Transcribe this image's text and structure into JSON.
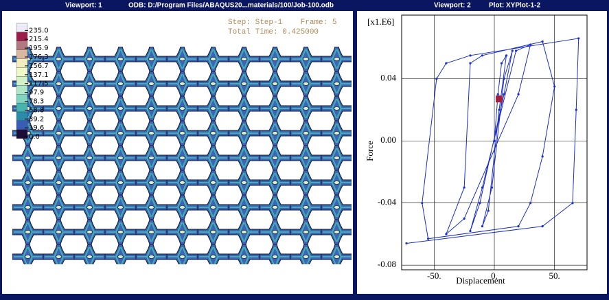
{
  "viewport1": {
    "name": "Viewport: 1",
    "odb": "ODB: D:/Program Files/ABAQUS20...materials/100/Job-100.odb",
    "legend": [
      "235.0",
      "215.4",
      "195.9",
      "176.3",
      "156.7",
      "137.1",
      "117.5",
      "97.9",
      "78.3",
      "58.8",
      "39.2",
      "19.6",
      "0.0"
    ],
    "step": "Step: Step-1    Frame: 5",
    "time": "Total Time: 0.425000"
  },
  "viewport2": {
    "name": "Viewport: 2",
    "plot": "Plot: XYPlot-1-2"
  },
  "chart_data": {
    "type": "line",
    "multiplier": "[x1.E6]",
    "xlabel": "Displacement",
    "ylabel": "Force",
    "xlim": [
      -77,
      77
    ],
    "ylim": [
      -0.083,
      0.081
    ],
    "xticks": [
      {
        "value": -50,
        "label": "-50."
      },
      {
        "value": 0,
        "label": "0."
      },
      {
        "value": 50,
        "label": "50."
      }
    ],
    "yticks": [
      -0.08,
      -0.04,
      {
        "value": 0,
        "label": "0.00"
      },
      0.04
    ],
    "grid": true,
    "series": [
      {
        "color": "#1a2ec8",
        "x": [
          0,
          3,
          6,
          10,
          4,
          -5,
          -10,
          -2,
          8,
          15,
          8,
          -12,
          -20,
          -10,
          18,
          30,
          20,
          -25,
          -40,
          -25,
          -20,
          -10,
          40,
          50,
          40,
          30,
          20,
          -55,
          -60,
          -48,
          -40,
          -20,
          70,
          68,
          65,
          40,
          -73
        ],
        "values": [
          0,
          0.03,
          0.05,
          0.055,
          0.02,
          -0.045,
          -0.055,
          -0.03,
          0.04,
          0.058,
          0.03,
          -0.04,
          -0.058,
          -0.03,
          0.058,
          0.062,
          0.03,
          -0.05,
          -0.06,
          -0.03,
          0.05,
          0.055,
          0.064,
          0.035,
          -0.01,
          -0.04,
          -0.055,
          -0.063,
          -0.04,
          0.04,
          0.05,
          0.055,
          0.066,
          0.02,
          -0.04,
          -0.055,
          -0.066
        ]
      }
    ],
    "marker": {
      "x": 4,
      "y": 0.027,
      "color": "#a02040"
    }
  }
}
